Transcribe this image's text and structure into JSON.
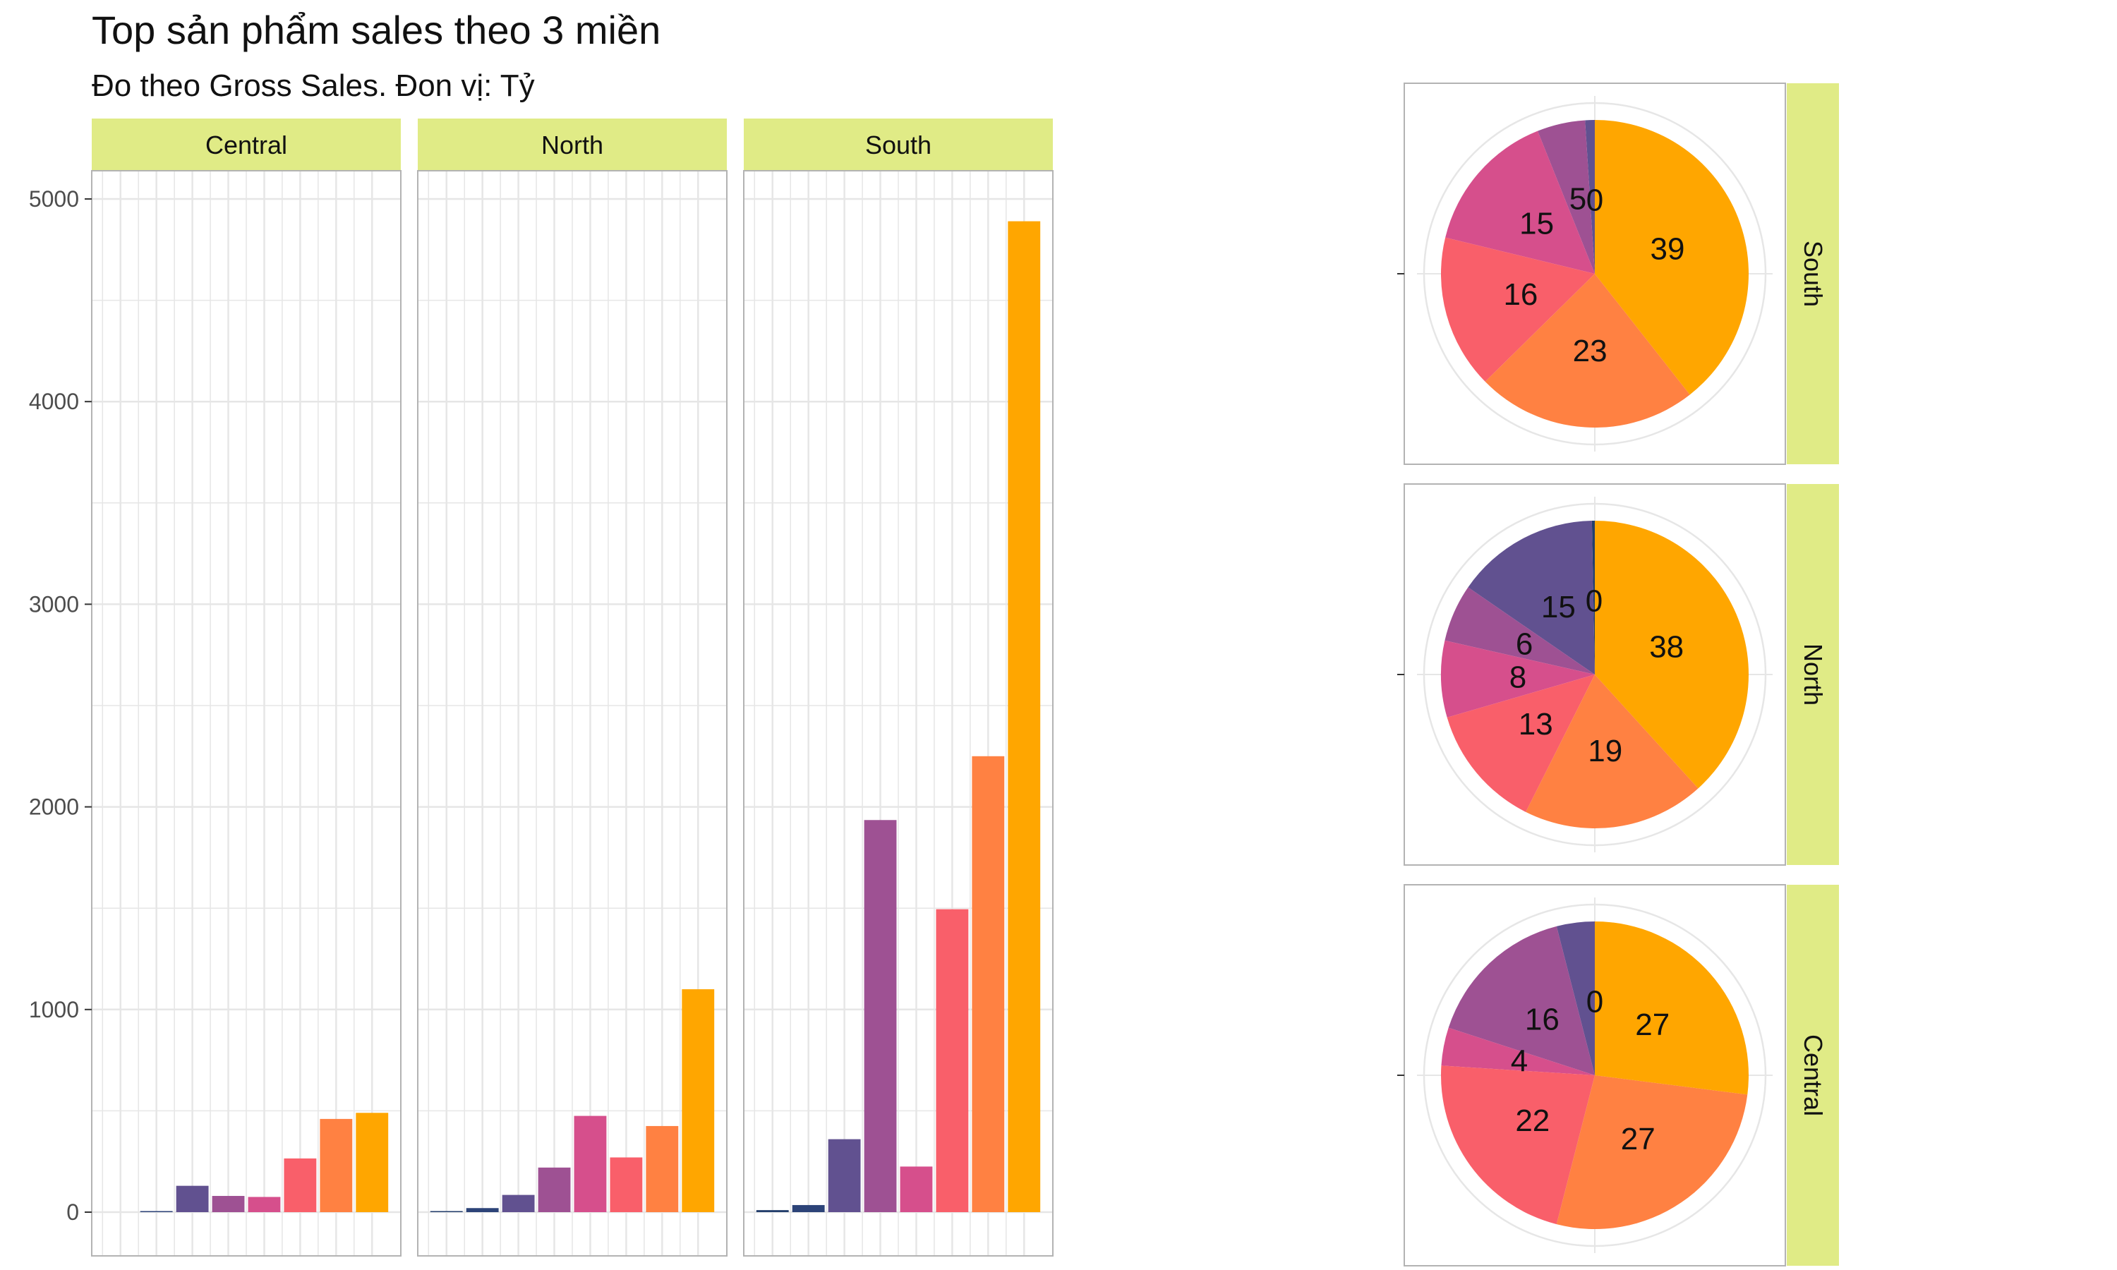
{
  "title": "Top sản phẩm sales theo 3 miền",
  "subtitle": "Đo theo Gross Sales. Đon vị: Tỷ",
  "colors": {
    "strip": "#e0eb86",
    "panel_border": "#b3b3b3",
    "grid": "#e6e6e6",
    "palette": [
      "#233e6c",
      "#2c4378",
      "#615190",
      "#9e5193",
      "#d64f8c",
      "#f95f6a",
      "#ff8142",
      "#ffa600"
    ]
  },
  "chart_data": [
    {
      "type": "bar",
      "facets": [
        "Central",
        "North",
        "South"
      ],
      "ylim": [
        0,
        5200
      ],
      "y_ticks": [
        0,
        1000,
        2000,
        3000,
        4000,
        5000
      ],
      "grid": true,
      "series": [
        {
          "name": "Central",
          "values": [
            0,
            5,
            130,
            80,
            75,
            265,
            460,
            490
          ]
        },
        {
          "name": "North",
          "values": [
            5,
            20,
            85,
            220,
            475,
            270,
            425,
            1100
          ]
        },
        {
          "name": "South",
          "values": [
            10,
            35,
            360,
            1935,
            225,
            1495,
            2250,
            4890
          ]
        }
      ]
    },
    {
      "type": "pie",
      "facets": [
        "South",
        "North",
        "Central"
      ],
      "series": [
        {
          "name": "South",
          "values": [
            0,
            1,
            5,
            15,
            16,
            23,
            39
          ],
          "labels": [
            "0",
            "",
            "5",
            "15",
            "16",
            "23",
            "39"
          ],
          "color_index": [
            1,
            2,
            3,
            4,
            5,
            6,
            7
          ]
        },
        {
          "name": "North",
          "values": [
            0.3,
            15,
            6,
            8,
            13,
            19,
            38
          ],
          "labels": [
            "0",
            "15",
            "6",
            "8",
            "13",
            "19",
            "38"
          ],
          "color_index": [
            0,
            2,
            3,
            4,
            5,
            6,
            7
          ]
        },
        {
          "name": "Central",
          "values": [
            0,
            4,
            16,
            4,
            22,
            27,
            27
          ],
          "labels": [
            "0",
            "",
            "16",
            "4",
            "22",
            "27",
            "27"
          ],
          "color_index": [
            1,
            2,
            3,
            4,
            5,
            6,
            7
          ]
        }
      ]
    }
  ]
}
